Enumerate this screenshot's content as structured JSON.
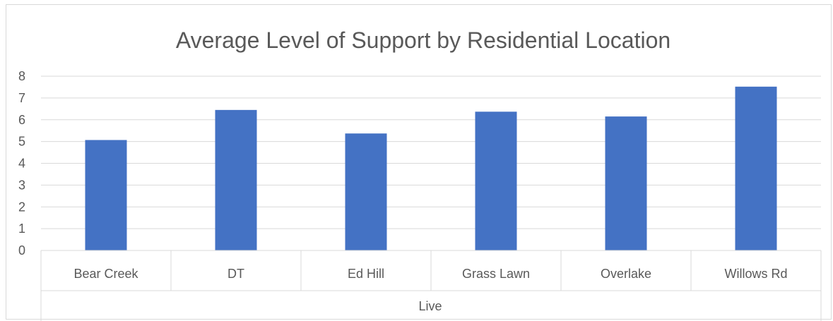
{
  "chart_data": {
    "type": "bar",
    "title": "Average Level of Support by Residential Location",
    "xlabel": "Live",
    "ylabel": "",
    "categories": [
      "Bear Creek",
      "DT",
      "Ed Hill",
      "Grass Lawn",
      "Overlake",
      "Willows Rd"
    ],
    "values": [
      5.07,
      6.45,
      5.37,
      6.37,
      6.15,
      7.52
    ],
    "ylim": [
      0,
      8
    ],
    "yticks": [
      "0",
      "1",
      "2",
      "3",
      "4",
      "5",
      "6",
      "7",
      "8"
    ],
    "grid": true,
    "legend": "none",
    "bar_color": "#4472c4",
    "grid_color": "#d9d9d9"
  }
}
